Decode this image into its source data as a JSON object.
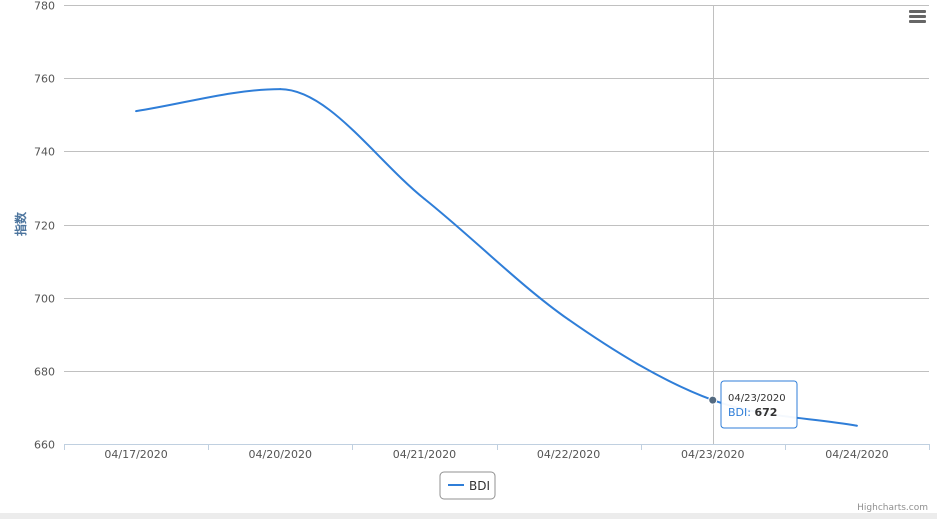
{
  "chart_data": {
    "type": "line",
    "title": "",
    "xlabel": "",
    "ylabel": "指数",
    "categories": [
      "04/17/2020",
      "04/20/2020",
      "04/21/2020",
      "04/22/2020",
      "04/23/2020",
      "04/24/2020"
    ],
    "series": [
      {
        "name": "BDI",
        "values": [
          751,
          757,
          727,
          694,
          672,
          665
        ],
        "color": "#2f7ed8"
      }
    ],
    "ylim": [
      660,
      780
    ],
    "yticks": [
      660,
      680,
      700,
      720,
      740,
      760,
      780
    ],
    "grid": true,
    "legend_position": "bottom-center",
    "tooltip": {
      "date": "04/23/2020",
      "series": "BDI",
      "separator": ": ",
      "value": "672",
      "category_index": 4
    }
  },
  "credits": "Highcharts.com",
  "menu_icon": "hamburger-menu-icon",
  "colors": {
    "line": "#2f7ed8",
    "grid": "#c0c0c0",
    "axis_title": "#4d759e",
    "crosshair": "#c0c0c0"
  }
}
